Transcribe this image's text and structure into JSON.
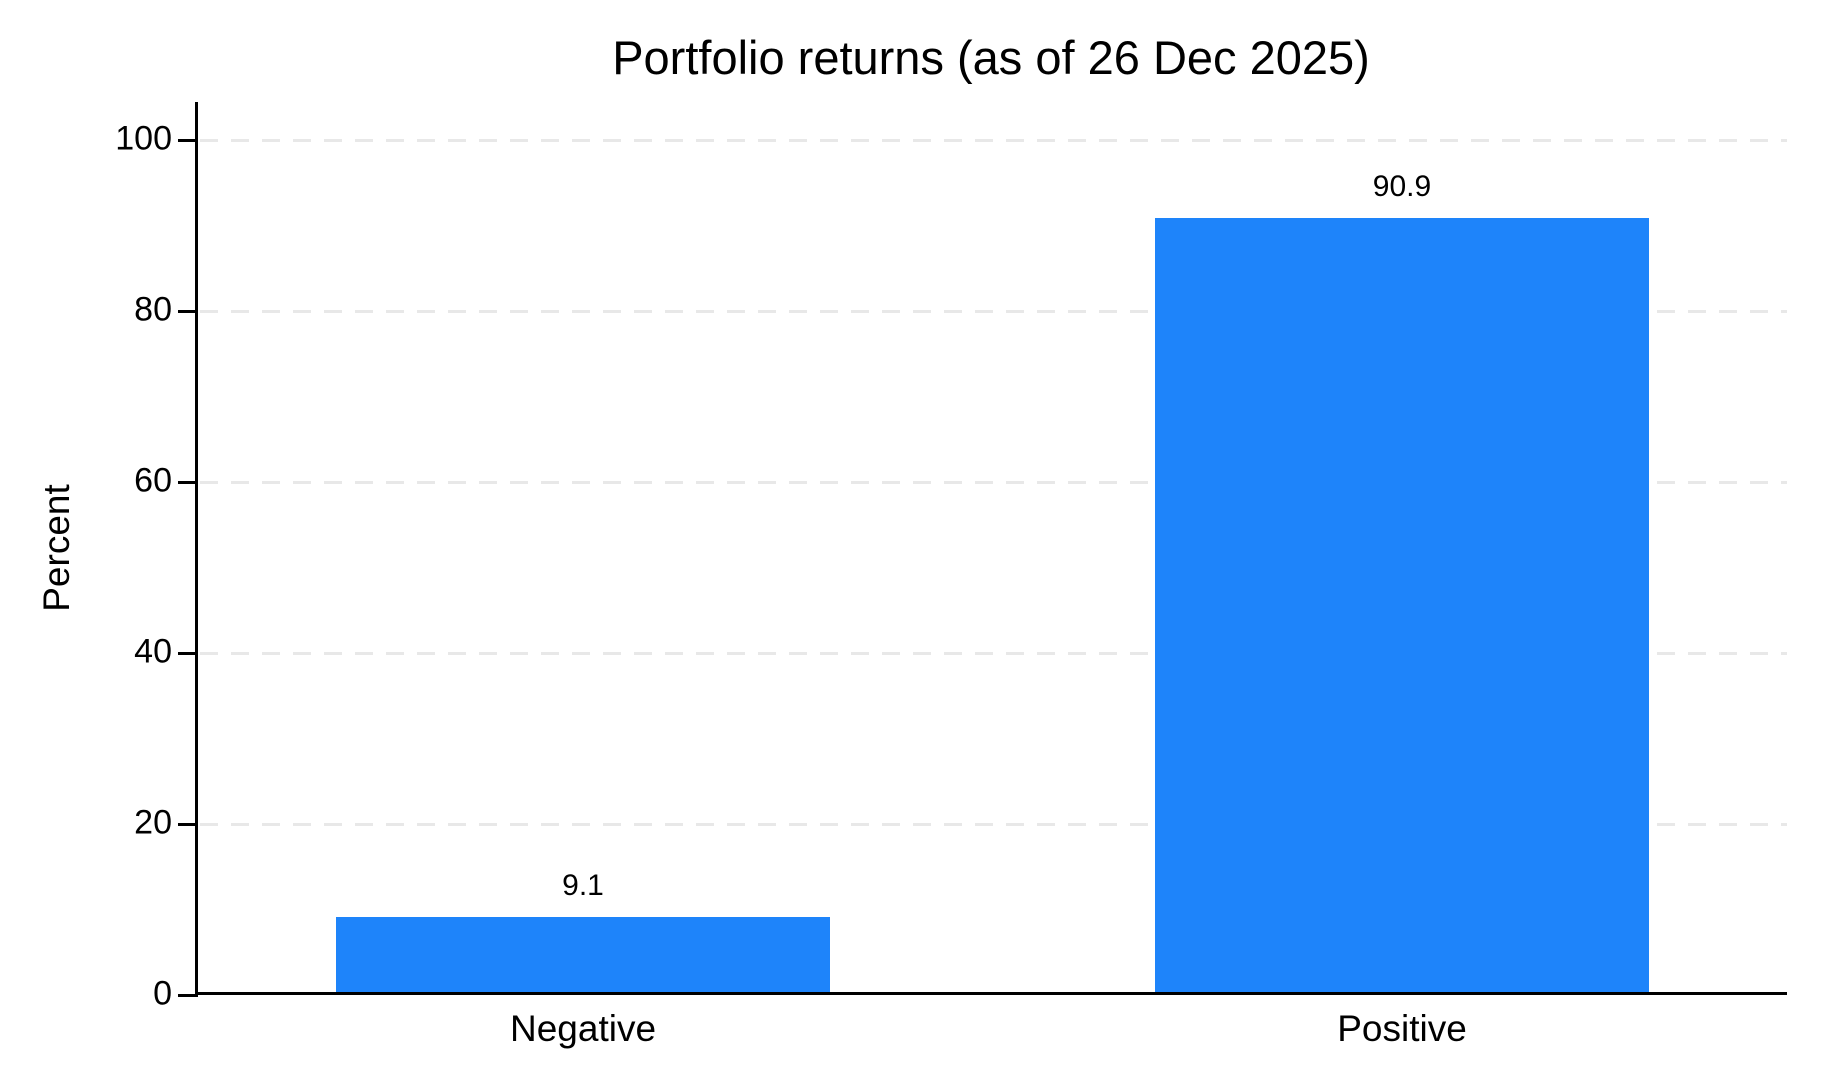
{
  "chart_data": {
    "type": "bar",
    "title": "Portfolio returns (as of 26 Dec 2025)",
    "categories": [
      "Negative",
      "Positive"
    ],
    "values": [
      9.1,
      90.9
    ],
    "value_labels": [
      "9.1",
      "90.9"
    ],
    "xlabel": "",
    "ylabel": "Percent",
    "ylim": [
      0,
      100
    ],
    "yticks": [
      0,
      20,
      40,
      60,
      80,
      100
    ],
    "grid": {
      "horizontal": true,
      "style": "dashed",
      "at": [
        20,
        40,
        60,
        80,
        100
      ]
    },
    "legend": "none",
    "colors": {
      "bar": "#1E84FA",
      "axis": "#000000",
      "text": "#000000",
      "gridline": "#E8E8E8",
      "background": "#FFFFFF"
    }
  }
}
